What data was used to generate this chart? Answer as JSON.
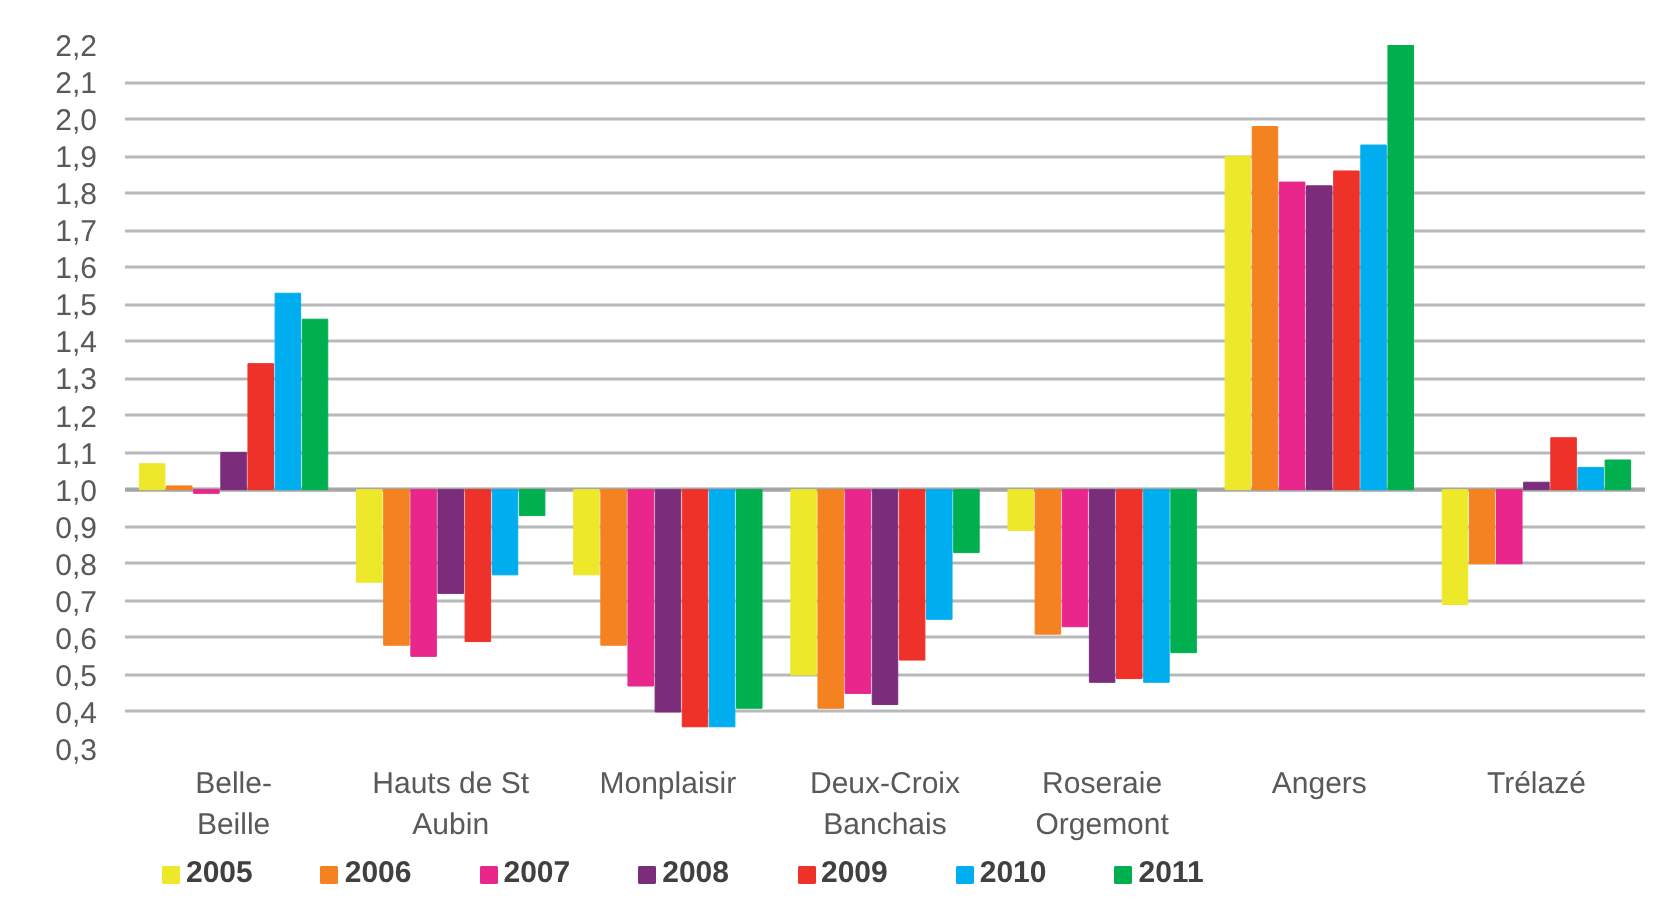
{
  "chart_data": {
    "type": "bar",
    "categories": [
      "Belle-Beille",
      "Hauts de St Aubin",
      "Monplaisir",
      "Deux-Croix Banchais",
      "Roseraie Orgemont",
      "Angers",
      "Trélazé"
    ],
    "series": [
      {
        "name": "2005",
        "color": "#eee82a",
        "base": [
          1,
          1,
          1,
          1,
          1,
          1,
          1
        ],
        "values": [
          0.07,
          -0.25,
          -0.23,
          -0.5,
          -0.11,
          0.9,
          -0.31
        ]
      },
      {
        "name": "2006",
        "color": "#f58220",
        "base": [
          1,
          1,
          1,
          1,
          1,
          1,
          1
        ],
        "values": [
          0.01,
          -0.42,
          -0.42,
          -0.59,
          -0.39,
          0.98,
          -0.2
        ]
      },
      {
        "name": "2007",
        "color": "#e9268b",
        "base": [
          1,
          1,
          1,
          1,
          1,
          1,
          1
        ],
        "values": [
          -0.01,
          -0.45,
          -0.53,
          -0.55,
          -0.37,
          0.83,
          -0.2
        ]
      },
      {
        "name": "2008",
        "color": "#7b2d7c",
        "base": [
          1,
          1,
          1,
          1,
          1,
          1,
          1
        ],
        "values": [
          0.1,
          -0.28,
          -0.6,
          -0.58,
          -0.52,
          0.82,
          0.02
        ]
      },
      {
        "name": "2009",
        "color": "#ee3129",
        "base": [
          1,
          1,
          1,
          1,
          1,
          1,
          1
        ],
        "values": [
          0.34,
          -0.41,
          -0.64,
          -0.46,
          -0.51,
          0.86,
          0.14
        ]
      },
      {
        "name": "2010",
        "color": "#00aeef",
        "base": [
          1,
          1,
          1,
          1,
          1,
          1,
          1
        ],
        "values": [
          0.53,
          -0.23,
          -0.64,
          -0.35,
          -0.52,
          0.93,
          0.06
        ]
      },
      {
        "name": "2011",
        "color": "#00b04f",
        "base": [
          1,
          1,
          1,
          1,
          1,
          1,
          1
        ],
        "values": [
          0.46,
          -0.07,
          -0.59,
          -0.17,
          -0.44,
          1.2,
          0.08
        ]
      }
    ],
    "ylim": [
      0.3,
      2.2
    ],
    "yticks": [
      {
        "value": 0.3,
        "label": "0,3"
      },
      {
        "value": 0.4,
        "label": "0,4"
      },
      {
        "value": 0.5,
        "label": "0,5"
      },
      {
        "value": 0.6,
        "label": "0,6"
      },
      {
        "value": 0.7,
        "label": "0,7"
      },
      {
        "value": 0.8,
        "label": "0,8"
      },
      {
        "value": 0.9,
        "label": "0,9"
      },
      {
        "value": 1.0,
        "label": "1,0"
      },
      {
        "value": 1.1,
        "label": "1,1"
      },
      {
        "value": 1.2,
        "label": "1,2"
      },
      {
        "value": 1.3,
        "label": "1,3"
      },
      {
        "value": 1.4,
        "label": "1,4"
      },
      {
        "value": 1.5,
        "label": "1,5"
      },
      {
        "value": 1.6,
        "label": "1,6"
      },
      {
        "value": 1.7,
        "label": "1,7"
      },
      {
        "value": 1.8,
        "label": "1,8"
      },
      {
        "value": 1.9,
        "label": "1,9"
      },
      {
        "value": 2.0,
        "label": "2,0"
      },
      {
        "value": 2.1,
        "label": "2,1"
      },
      {
        "value": 2.2,
        "label": "2,2"
      }
    ],
    "ref_lines": [
      {
        "axis": "y",
        "value": 1.0,
        "color": "#a6a6a6"
      }
    ],
    "grid": "y",
    "legend": "bottom"
  }
}
